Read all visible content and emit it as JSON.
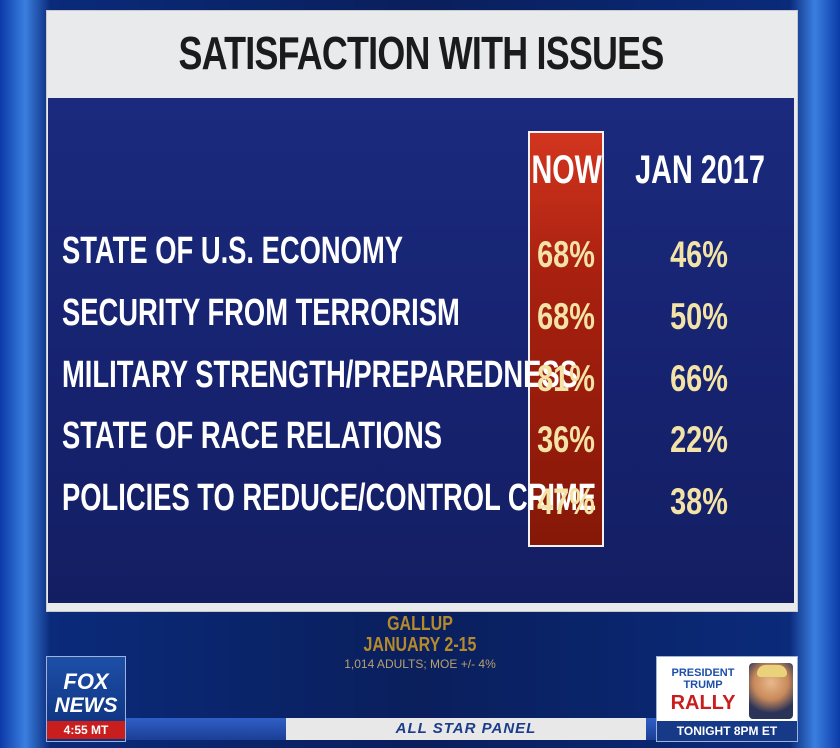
{
  "board": {
    "title": "SATISFACTION WITH ISSUES",
    "col_now": "NOW",
    "col_prev": "JAN 2017",
    "rows": [
      {
        "label": "STATE OF U.S. ECONOMY",
        "now": "68%",
        "prev": "46%"
      },
      {
        "label": "SECURITY FROM TERRORISM",
        "now": "68%",
        "prev": "50%"
      },
      {
        "label": "MILITARY STRENGTH/PREPAREDNESS",
        "now": "81%",
        "prev": "66%"
      },
      {
        "label": "STATE OF RACE RELATIONS",
        "now": "36%",
        "prev": "22%"
      },
      {
        "label": "POLICIES TO REDUCE/CONTROL CRIME",
        "now": "47%",
        "prev": "38%"
      }
    ]
  },
  "source": {
    "name": "GALLUP",
    "dates": "JANUARY 2-15",
    "note": "1,014 ADULTS; MOE +/- 4%"
  },
  "network": {
    "logo_line1": "FOX",
    "logo_line2": "NEWS",
    "time": "4:55 MT"
  },
  "ticker": {
    "label": "ALL STAR PANEL"
  },
  "promo": {
    "line1": "PRESIDENT",
    "line2": "TRUMP",
    "line3": "RALLY",
    "time": "TONIGHT 8PM ET"
  },
  "colors": {
    "panel_blue": "#16226e",
    "now_red": "#a82010",
    "value_yellow": "#f3e3a6"
  }
}
